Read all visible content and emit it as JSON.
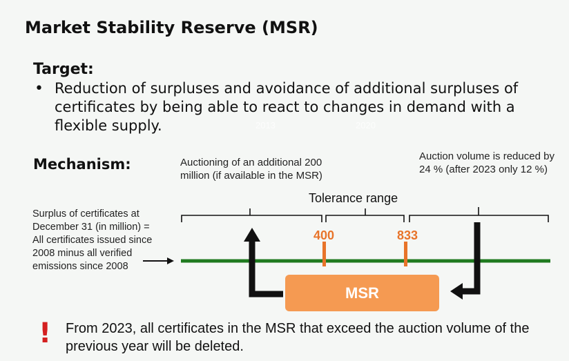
{
  "title": "Market Stability Reserve (MSR)",
  "target": {
    "label": "Target:",
    "bullet": "•",
    "text": "Reduction of surpluses and avoidance of additional surpluses of certificates by being able to react to changes in demand with a flexible supply."
  },
  "faint_years": {
    "left": "2013",
    "right": "2020"
  },
  "mechanism": {
    "label": "Mechanism:",
    "left_note": "Auctioning of an additional 200 million (if available in the MSR)",
    "right_note": "Auction volume is reduced by 24 % (after 2023 only 12 %)",
    "tolerance_label": "Tolerance range",
    "surplus_note": "Surplus of certificates at December 31 (in million) = All certificates issued since 2008 minus all verified emissions since 2008",
    "threshold_low": "400",
    "threshold_high": "833",
    "msr_label": "MSR"
  },
  "colors": {
    "timeline": "#1f7a1f",
    "threshold": "#e8742a",
    "msr_box": "#f59a52",
    "warning": "#d42020"
  },
  "icons": {
    "warning": "exclamation-icon"
  },
  "footer": {
    "warning_mark": "!",
    "text": "From 2023, all certificates in the MSR that exceed the auction volume of the previous year will be deleted."
  }
}
